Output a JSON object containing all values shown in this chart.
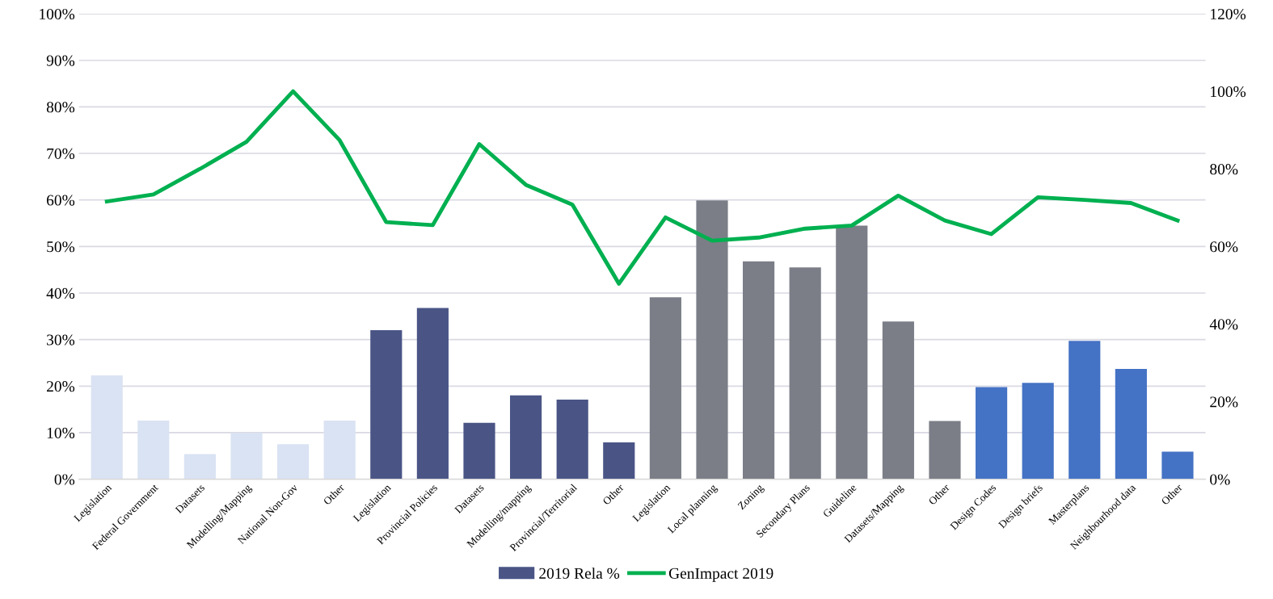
{
  "chart_data": {
    "type": "bar",
    "categories": [
      "Legislation",
      "Federal Government",
      "Datasets",
      "Modelling/Mapping",
      "National Non-Gov",
      "Other",
      "Legislation",
      "Provincial Policies",
      "Datasets",
      "Modelling/mapping",
      "Provincial/Territorial",
      "Other",
      "Legislation",
      "Local planning",
      "Zoning",
      "Secondary Plans",
      "Guideline",
      "Datasets/Mapping",
      "Other",
      "Design Codes",
      "Design briefs",
      "Masterplans",
      "Neighbourhood data",
      "Other"
    ],
    "series": [
      {
        "name": "2019 Rela %",
        "color": "#4a5586",
        "colors": [
          "#dae3f3",
          "#dae3f3",
          "#dae3f3",
          "#dae3f3",
          "#dae3f3",
          "#dae3f3",
          "#4a5586",
          "#4a5586",
          "#4a5586",
          "#4a5586",
          "#4a5586",
          "#4a5586",
          "#7b7e87",
          "#7b7e87",
          "#7b7e87",
          "#7b7e87",
          "#7b7e87",
          "#7b7e87",
          "#7b7e87",
          "#4472c4",
          "#4472c4",
          "#4472c4",
          "#4472c4",
          "#4472c4"
        ],
        "values": [
          22.3,
          12.6,
          5.4,
          10.0,
          7.5,
          12.6,
          32.0,
          36.8,
          12.1,
          18.0,
          17.1,
          7.9,
          39.1,
          59.9,
          46.8,
          45.5,
          54.5,
          33.9,
          12.5,
          19.8,
          20.7,
          29.7,
          23.7,
          5.9
        ]
      },
      {
        "name": "GenImpact 2019",
        "type": "line",
        "axis": "y2",
        "color": "#00b050",
        "values": [
          71.6,
          73.4,
          80.0,
          87.0,
          100,
          87.4,
          66.3,
          65.5,
          86.4,
          75.9,
          70.8,
          50.4,
          67.5,
          61.5,
          62.3,
          64.6,
          65.4,
          73.1,
          66.7,
          63.2,
          72.7,
          72.0,
          71.2,
          66.7
        ]
      }
    ],
    "ylim": [
      0,
      100
    ],
    "yticks": [
      {
        "value": 0,
        "label": "0%"
      },
      {
        "value": 10,
        "label": "10%"
      },
      {
        "value": 20,
        "label": "20%"
      },
      {
        "value": 30,
        "label": "30%"
      },
      {
        "value": 40,
        "label": "40%"
      },
      {
        "value": 50,
        "label": "50%"
      },
      {
        "value": 60,
        "label": "60%"
      },
      {
        "value": 70,
        "label": "70%"
      },
      {
        "value": 80,
        "label": "80%"
      },
      {
        "value": 90,
        "label": "90%"
      },
      {
        "value": 100,
        "label": "100%"
      }
    ],
    "y2lim": [
      0,
      120
    ],
    "y2ticks": [
      {
        "value": 0,
        "label": "0%"
      },
      {
        "value": 20,
        "label": "20%"
      },
      {
        "value": 40,
        "label": "40%"
      },
      {
        "value": 60,
        "label": "60%"
      },
      {
        "value": 80,
        "label": "80%"
      },
      {
        "value": 100,
        "label": "100%"
      },
      {
        "value": 120,
        "label": "120%"
      }
    ],
    "grid": "y",
    "legend": "bottom",
    "marker": "none",
    "line_style": "solid"
  }
}
